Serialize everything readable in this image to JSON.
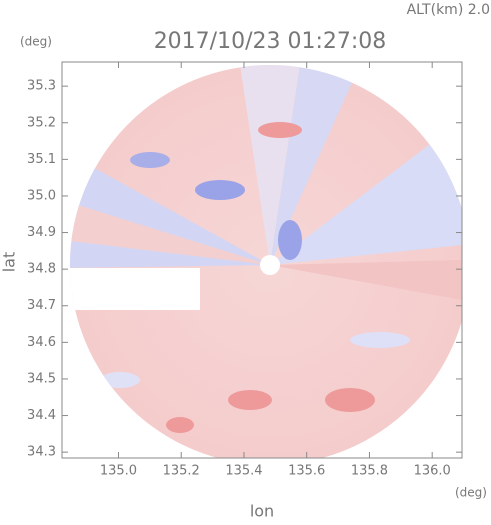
{
  "chart_data": {
    "type": "image",
    "title": "2017/10/23 01:27:08",
    "subtitle": "ALT(km) 2.0",
    "x_label": "lon",
    "y_label": "lat",
    "x_unit": "(deg)",
    "y_unit": "(deg)",
    "xlim": [
      134.82,
      136.095
    ],
    "ylim": [
      34.284,
      35.366
    ],
    "xticks": [
      {
        "value": 135,
        "label": "135.0"
      },
      135.2,
      135.4,
      135.6,
      135.8,
      {
        "value": 136,
        "label": "136.0"
      }
    ],
    "yticks": [
      34.3,
      34.4,
      34.5,
      34.6,
      34.7,
      34.8,
      34.9,
      {
        "value": 35,
        "label": "35.0"
      },
      35.1,
      35.2,
      35.3
    ]
  }
}
